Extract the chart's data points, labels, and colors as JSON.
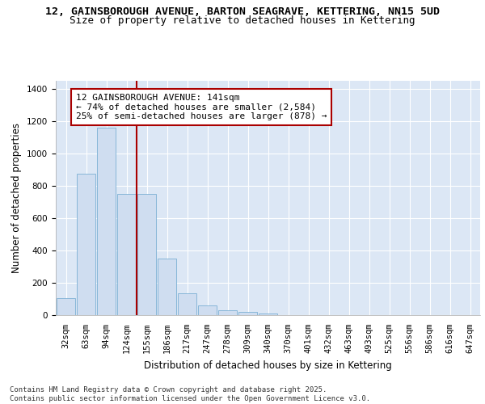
{
  "title_line1": "12, GAINSBOROUGH AVENUE, BARTON SEAGRAVE, KETTERING, NN15 5UD",
  "title_line2": "Size of property relative to detached houses in Kettering",
  "xlabel": "Distribution of detached houses by size in Kettering",
  "ylabel": "Number of detached properties",
  "categories": [
    "32sqm",
    "63sqm",
    "94sqm",
    "124sqm",
    "155sqm",
    "186sqm",
    "217sqm",
    "247sqm",
    "278sqm",
    "309sqm",
    "340sqm",
    "370sqm",
    "401sqm",
    "432sqm",
    "463sqm",
    "493sqm",
    "525sqm",
    "556sqm",
    "586sqm",
    "616sqm",
    "647sqm"
  ],
  "values": [
    105,
    875,
    1160,
    750,
    750,
    350,
    135,
    60,
    30,
    20,
    12,
    0,
    0,
    0,
    0,
    0,
    0,
    0,
    0,
    0,
    0
  ],
  "bar_color": "#cfddf0",
  "bar_edge_color": "#7bafd4",
  "vline_color": "#aa0000",
  "annotation_text": "12 GAINSBOROUGH AVENUE: 141sqm\n← 74% of detached houses are smaller (2,584)\n25% of semi-detached houses are larger (878) →",
  "annotation_box_color": "#ffffff",
  "annotation_box_edge": "#aa0000",
  "ylim": [
    0,
    1450
  ],
  "yticks": [
    0,
    200,
    400,
    600,
    800,
    1000,
    1200,
    1400
  ],
  "background_color": "#dce7f5",
  "grid_color": "#ffffff",
  "footer_text": "Contains HM Land Registry data © Crown copyright and database right 2025.\nContains public sector information licensed under the Open Government Licence v3.0.",
  "title_fontsize": 9.5,
  "subtitle_fontsize": 9.0,
  "axis_label_fontsize": 8.5,
  "tick_fontsize": 7.5,
  "annotation_fontsize": 8.0,
  "footer_fontsize": 6.5
}
